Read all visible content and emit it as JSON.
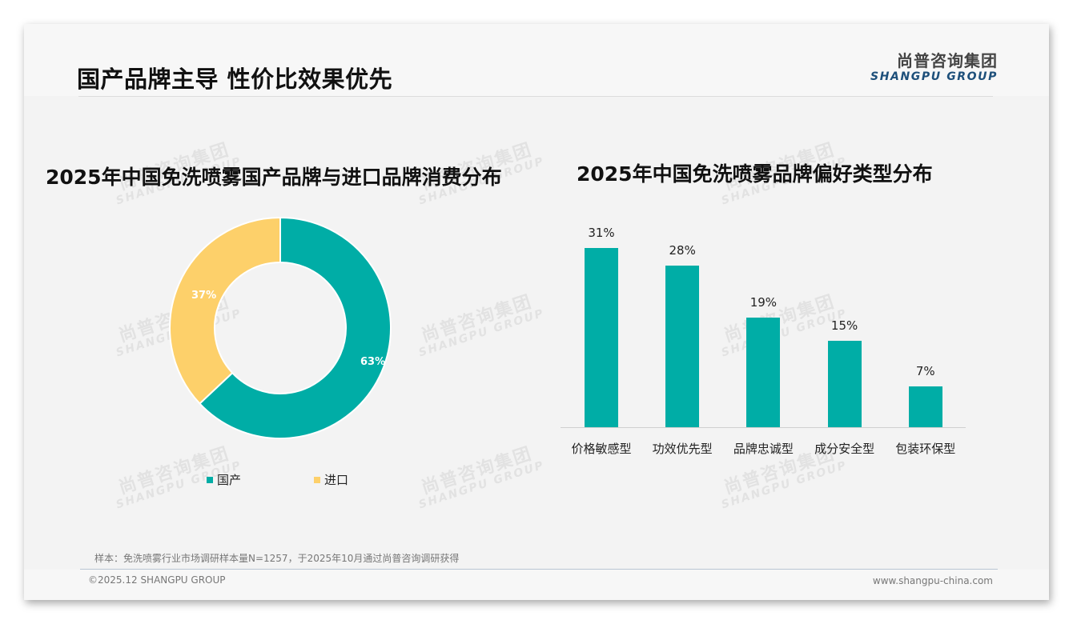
{
  "header": {
    "title": "国产品牌主导 性价比效果优先",
    "logo_cn": "尚普咨询集团",
    "logo_en": "SHANGPU GROUP"
  },
  "watermark": {
    "cn": "尚普咨询集团",
    "en": "SHANGPU GROUP"
  },
  "colors": {
    "teal": "#00ada6",
    "yellow": "#fdd06a",
    "logo_blue": "#1d4f7a"
  },
  "chart_data": [
    {
      "type": "pie",
      "variant": "donut",
      "title": "2025年中国免洗喷雾国产品牌与进口品牌消费分布",
      "categories": [
        "国产",
        "进口"
      ],
      "values": [
        63,
        37
      ],
      "labels": [
        "63%",
        "37%"
      ],
      "colors": [
        "#00ada6",
        "#fdd06a"
      ],
      "legend_position": "bottom"
    },
    {
      "type": "bar",
      "title": "2025年中国免洗喷雾品牌偏好类型分布",
      "categories": [
        "价格敏感型",
        "功效优先型",
        "品牌忠诚型",
        "成分安全型",
        "包装环保型"
      ],
      "values": [
        31,
        28,
        19,
        15,
        7
      ],
      "labels": [
        "31%",
        "28%",
        "19%",
        "15%",
        "7%"
      ],
      "unit": "%",
      "color": "#00ada6",
      "xlabel": "",
      "ylabel": "",
      "grid": false,
      "ylim": [
        0,
        35
      ]
    }
  ],
  "legend": [
    {
      "label": "国产",
      "color": "#00ada6"
    },
    {
      "label": "进口",
      "color": "#fdd06a"
    }
  ],
  "footer": {
    "sample_note": "样本：免洗喷雾行业市场调研样本量N=1257，于2025年10月通过尚普咨询调研获得",
    "copyright": "©2025.12 SHANGPU GROUP",
    "website": "www.shangpu-china.com"
  }
}
